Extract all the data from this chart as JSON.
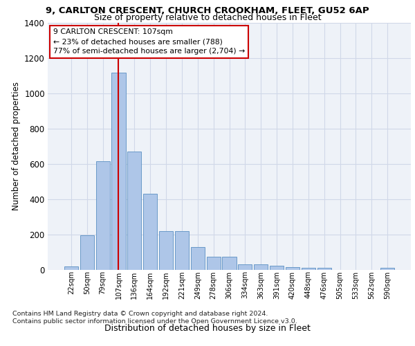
{
  "title_line1": "9, CARLTON CRESCENT, CHURCH CROOKHAM, FLEET, GU52 6AP",
  "title_line2": "Size of property relative to detached houses in Fleet",
  "xlabel": "Distribution of detached houses by size in Fleet",
  "ylabel": "Number of detached properties",
  "categories": [
    "22sqm",
    "50sqm",
    "79sqm",
    "107sqm",
    "136sqm",
    "164sqm",
    "192sqm",
    "221sqm",
    "249sqm",
    "278sqm",
    "306sqm",
    "334sqm",
    "363sqm",
    "391sqm",
    "420sqm",
    "448sqm",
    "476sqm",
    "505sqm",
    "533sqm",
    "562sqm",
    "590sqm"
  ],
  "values": [
    20,
    195,
    615,
    1115,
    670,
    430,
    218,
    218,
    130,
    73,
    73,
    33,
    30,
    25,
    17,
    10,
    10,
    0,
    0,
    0,
    13
  ],
  "bar_color": "#aec6e8",
  "bar_edge_color": "#5a8fc2",
  "grid_color": "#d0d8e8",
  "background_color": "#eef2f8",
  "property_idx": 3,
  "vline_color": "#cc0000",
  "annotation_line1": "9 CARLTON CRESCENT: 107sqm",
  "annotation_line2": "← 23% of detached houses are smaller (788)",
  "annotation_line3": "77% of semi-detached houses are larger (2,704) →",
  "annotation_box_color": "#cc0000",
  "ylim_max": 1400,
  "yticks": [
    0,
    200,
    400,
    600,
    800,
    1000,
    1200,
    1400
  ],
  "footer_line1": "Contains HM Land Registry data © Crown copyright and database right 2024.",
  "footer_line2": "Contains public sector information licensed under the Open Government Licence v3.0."
}
